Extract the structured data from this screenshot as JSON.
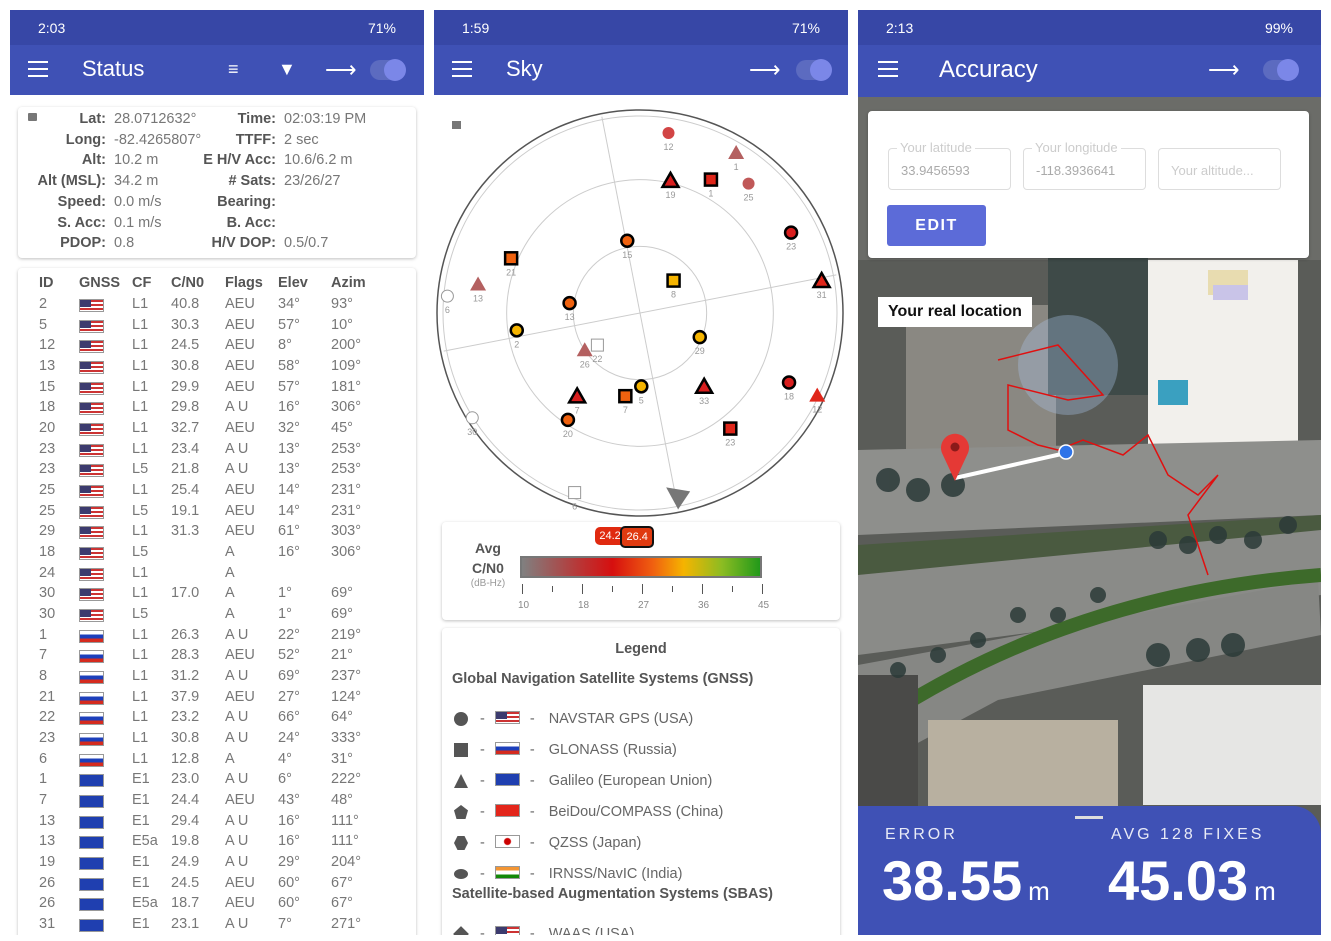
{
  "status_screen": {
    "statusbar": {
      "time": "2:03",
      "battery": "71%"
    },
    "title": "Status",
    "icons": [
      "sort-icon",
      "filter-icon",
      "share-icon",
      "toggle-switch"
    ],
    "fix": [
      {
        "label": "Lat:",
        "value": "28.0712632°",
        "label2": "Time:",
        "value2": "02:03:19 PM"
      },
      {
        "label": "Long:",
        "value": "-82.4265807°",
        "label2": "TTFF:",
        "value2": "2 sec"
      },
      {
        "label": "Alt:",
        "value": "10.2 m",
        "label2": "E H/V Acc:",
        "value2": "10.6/6.2 m"
      },
      {
        "label": "Alt (MSL):",
        "value": "34.2 m",
        "label2": "# Sats:",
        "value2": "23/26/27"
      },
      {
        "label": "Speed:",
        "value": "0.0 m/s",
        "label2": "Bearing:",
        "value2": ""
      },
      {
        "label": "S. Acc:",
        "value": "0.1 m/s",
        "label2": "B. Acc:",
        "value2": ""
      },
      {
        "label": "PDOP:",
        "value": "0.8",
        "label2": "H/V DOP:",
        "value2": "0.5/0.7"
      }
    ],
    "table": {
      "headers": [
        "ID",
        "GNSS",
        "CF",
        "C/N0",
        "Flags",
        "Elev",
        "Azim"
      ],
      "rows": [
        [
          "2",
          "usa",
          "L1",
          "40.8",
          "AEU",
          "34°",
          "93°"
        ],
        [
          "5",
          "usa",
          "L1",
          "30.3",
          "AEU",
          "57°",
          "10°"
        ],
        [
          "12",
          "usa",
          "L1",
          "24.5",
          "AEU",
          "8°",
          "200°"
        ],
        [
          "13",
          "usa",
          "L1",
          "30.8",
          "AEU",
          "58°",
          "109°"
        ],
        [
          "15",
          "usa",
          "L1",
          "29.9",
          "AEU",
          "57°",
          "181°"
        ],
        [
          "18",
          "usa",
          "L1",
          "29.8",
          "A U",
          "16°",
          "306°"
        ],
        [
          "20",
          "usa",
          "L1",
          "32.7",
          "AEU",
          "32°",
          "45°"
        ],
        [
          "23",
          "usa",
          "L1",
          "23.4",
          "A U",
          "13°",
          "253°"
        ],
        [
          "23",
          "usa",
          "L5",
          "21.8",
          "A U",
          "13°",
          "253°"
        ],
        [
          "25",
          "usa",
          "L1",
          "25.4",
          "AEU",
          "14°",
          "231°"
        ],
        [
          "25",
          "usa",
          "L5",
          "19.1",
          "AEU",
          "14°",
          "231°"
        ],
        [
          "29",
          "usa",
          "L1",
          "31.3",
          "AEU",
          "61°",
          "303°"
        ],
        [
          "18",
          "usa",
          "L5",
          "",
          "A",
          "16°",
          "306°"
        ],
        [
          "24",
          "usa",
          "L1",
          "",
          "A",
          "",
          ""
        ],
        [
          "30",
          "usa",
          "L1",
          "17.0",
          "A",
          "1°",
          "69°"
        ],
        [
          "30",
          "usa",
          "L5",
          "",
          "A",
          "1°",
          "69°"
        ],
        [
          "1",
          "rus",
          "L1",
          "26.3",
          "A U",
          "22°",
          "219°"
        ],
        [
          "7",
          "rus",
          "L1",
          "28.3",
          "AEU",
          "52°",
          "21°"
        ],
        [
          "8",
          "rus",
          "L1",
          "31.2",
          "A U",
          "69°",
          "237°"
        ],
        [
          "21",
          "rus",
          "L1",
          "37.9",
          "AEU",
          "27°",
          "124°"
        ],
        [
          "22",
          "rus",
          "L1",
          "23.2",
          "A U",
          "66°",
          "64°"
        ],
        [
          "23",
          "rus",
          "L1",
          "30.8",
          "A U",
          "24°",
          "333°"
        ],
        [
          "6",
          "rus",
          "L1",
          "12.8",
          "A",
          "4°",
          "31°"
        ],
        [
          "1",
          "eu",
          "E1",
          "23.0",
          "A U",
          "6°",
          "222°"
        ],
        [
          "7",
          "eu",
          "E1",
          "24.4",
          "AEU",
          "43°",
          "48°"
        ],
        [
          "13",
          "eu",
          "E1",
          "29.4",
          "A U",
          "16°",
          "111°"
        ],
        [
          "13",
          "eu",
          "E5a",
          "19.8",
          "A U",
          "16°",
          "111°"
        ],
        [
          "19",
          "eu",
          "E1",
          "24.9",
          "A U",
          "29°",
          "204°"
        ],
        [
          "26",
          "eu",
          "E1",
          "24.5",
          "AEU",
          "60°",
          "67°"
        ],
        [
          "26",
          "eu",
          "E5a",
          "18.7",
          "AEU",
          "60°",
          "67°"
        ],
        [
          "31",
          "eu",
          "E1",
          "23.1",
          "A U",
          "7°",
          "271°"
        ]
      ]
    }
  },
  "sky_screen": {
    "statusbar": {
      "time": "1:59",
      "battery": "71%"
    },
    "title": "Sky",
    "chart_data": {
      "type": "scatter",
      "coordinate": "polar elevation/azimuth",
      "satellites": [
        {
          "id": "12",
          "shape": "circle",
          "color": "#d24545",
          "outlined": false,
          "elev": 8,
          "azim": 200
        },
        {
          "id": "1",
          "shape": "triangle",
          "color": "#b46060",
          "outlined": false,
          "elev": 6,
          "azim": 222
        },
        {
          "id": "19",
          "shape": "triangle",
          "color": "#d81e1e",
          "outlined": true,
          "elev": 29,
          "azim": 204
        },
        {
          "id": "1",
          "shape": "square",
          "color": "#e0261a",
          "outlined": true,
          "elev": 22,
          "azim": 219
        },
        {
          "id": "25",
          "shape": "circle",
          "color": "#c05858",
          "outlined": false,
          "elev": 14,
          "azim": 231
        },
        {
          "id": "23",
          "shape": "circle",
          "color": "#d81e1e",
          "outlined": true,
          "elev": 13,
          "azim": 253
        },
        {
          "id": "15",
          "shape": "circle",
          "color": "#f0620f",
          "outlined": true,
          "elev": 57,
          "azim": 181
        },
        {
          "id": "21",
          "shape": "square",
          "color": "#f0620f",
          "outlined": true,
          "elev": 27,
          "azim": 124
        },
        {
          "id": "13",
          "shape": "triangle",
          "color": "#b46060",
          "outlined": false,
          "elev": 16,
          "azim": 111
        },
        {
          "id": "6",
          "shape": "circle",
          "color": "none",
          "outlined": false,
          "elev": 3,
          "azim": 106
        },
        {
          "id": "8",
          "shape": "square",
          "color": "#f5b400",
          "outlined": true,
          "elev": 69,
          "azim": 237
        },
        {
          "id": "31",
          "shape": "triangle",
          "color": "#e0261a",
          "outlined": true,
          "elev": 7,
          "azim": 271
        },
        {
          "id": "13",
          "shape": "circle",
          "color": "#f0620f",
          "outlined": true,
          "elev": 58,
          "azim": 109
        },
        {
          "id": "2",
          "shape": "circle",
          "color": "#f5b400",
          "outlined": true,
          "elev": 34,
          "azim": 93
        },
        {
          "id": "29",
          "shape": "circle",
          "color": "#f5b400",
          "outlined": true,
          "elev": 61,
          "azim": 303
        },
        {
          "id": "22",
          "shape": "square",
          "color": "none",
          "outlined": false,
          "elev": 66,
          "azim": 64
        },
        {
          "id": "26",
          "shape": "triangle",
          "color": "#b46060",
          "outlined": false,
          "elev": 60,
          "azim": 67
        },
        {
          "id": "7",
          "shape": "triangle",
          "color": "#d81e1e",
          "outlined": true,
          "elev": 43,
          "azim": 48
        },
        {
          "id": "7",
          "shape": "square",
          "color": "#f0620f",
          "outlined": true,
          "elev": 52,
          "azim": 21
        },
        {
          "id": "5",
          "shape": "circle",
          "color": "#f5b400",
          "outlined": true,
          "elev": 57,
          "azim": 10
        },
        {
          "id": "33",
          "shape": "triangle",
          "color": "#d81e1e",
          "outlined": true,
          "elev": 46,
          "azim": 330
        },
        {
          "id": "18",
          "shape": "circle",
          "color": "#d81e1e",
          "outlined": true,
          "elev": 16,
          "azim": 306
        },
        {
          "id": "12",
          "shape": "triangle",
          "color": "#e0261a",
          "outlined": false,
          "elev": 2,
          "azim": 306
        },
        {
          "id": "30",
          "shape": "circle",
          "color": "none",
          "outlined": false,
          "elev": 1,
          "azim": 69
        },
        {
          "id": "20",
          "shape": "circle",
          "color": "#f0620f",
          "outlined": true,
          "elev": 32,
          "azim": 45
        },
        {
          "id": "23",
          "shape": "square",
          "color": "#e0261a",
          "outlined": true,
          "elev": 24,
          "azim": 333
        },
        {
          "id": "6",
          "shape": "square",
          "color": "none",
          "outlined": false,
          "elev": 4,
          "azim": 31
        }
      ]
    },
    "cn0": {
      "label1": "Avg",
      "label2": "C/N0",
      "unit": "(dB-Hz)",
      "ticks": [
        "10",
        "18",
        "27",
        "36",
        "45"
      ],
      "range": [
        10,
        45
      ],
      "avg_in_view": 24.2,
      "avg_used": 26.4,
      "avg_in_view_label": "24.2",
      "avg_used_label": "26.4"
    },
    "legend": {
      "title": "Legend",
      "gnss_header": "Global Navigation Satellite Systems (GNSS)",
      "gnss": [
        {
          "shape": "circle",
          "flag": "usa",
          "name": "NAVSTAR GPS (USA)"
        },
        {
          "shape": "square",
          "flag": "rus",
          "name": "GLONASS (Russia)"
        },
        {
          "shape": "triangle",
          "flag": "eu",
          "name": "Galileo (European Union)"
        },
        {
          "shape": "pentagon",
          "flag": "chn",
          "name": "BeiDou/COMPASS (China)"
        },
        {
          "shape": "hexagon",
          "flag": "jpn",
          "name": "QZSS (Japan)"
        },
        {
          "shape": "oval",
          "flag": "ind",
          "name": "IRNSS/NavIC (India)"
        }
      ],
      "sbas_header": "Satellite-based Augmentation Systems (SBAS)",
      "sbas": [
        {
          "shape": "diamond",
          "flag": "usa",
          "name": "WAAS (USA)"
        }
      ],
      "separator": "-"
    }
  },
  "accuracy_screen": {
    "statusbar": {
      "time": "2:13",
      "battery": "99%"
    },
    "title": "Accuracy",
    "latitude": {
      "placeholder": "Your latitude",
      "value": "33.9456593"
    },
    "longitude": {
      "placeholder": "Your longitude",
      "value": "-118.3936641"
    },
    "altitude": {
      "placeholder": "Your altitude...",
      "value": ""
    },
    "edit_label": "EDIT",
    "map_label": "Your real location",
    "error_label": "ERROR",
    "error_value": "38.55",
    "error_unit": "m",
    "avg_label": "AVG 128 FIXES",
    "avg_value": "45.03",
    "avg_unit": "m",
    "colors": {
      "primary": "#3f51b5",
      "button": "#5c6bd8",
      "pin": "#e53935",
      "blue_dot": "#2f74e8",
      "track": "#e01010"
    }
  }
}
